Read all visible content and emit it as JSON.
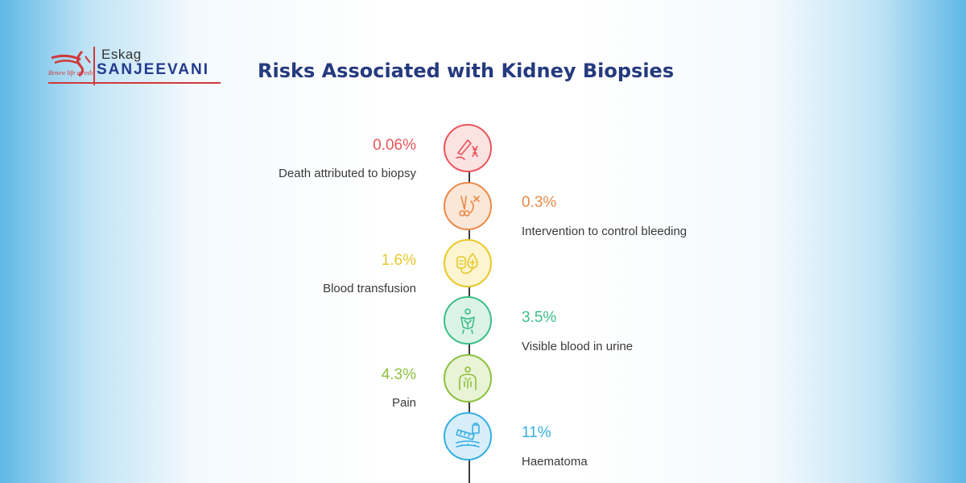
{
  "logo": {
    "top": "Eskag",
    "main": "SANJEEVANI",
    "tagline": "Renew life afresh"
  },
  "title": "Risks Associated with Kidney Biopsies",
  "risks": [
    {
      "percent": "0.06%",
      "label": "Death attributed to biopsy",
      "color": "#e8555a",
      "fill": "#fbe3e2",
      "icon": "scalpel-dna-icon",
      "side": "left"
    },
    {
      "percent": "0.3%",
      "label": "Intervention to control bleeding",
      "color": "#e98a48",
      "fill": "#fbe7d8",
      "icon": "forceps-icon",
      "side": "right"
    },
    {
      "percent": "1.6%",
      "label": "Blood transfusion",
      "color": "#e8c82a",
      "fill": "#fcf5cf",
      "icon": "iv-bag-icon",
      "side": "left"
    },
    {
      "percent": "3.5%",
      "label": "Visible blood in urine",
      "color": "#3cbf87",
      "fill": "#dcf3e8",
      "icon": "person-bladder-icon",
      "side": "right"
    },
    {
      "percent": "4.3%",
      "label": "Pain",
      "color": "#8dc040",
      "fill": "#e9f3d5",
      "icon": "person-pain-icon",
      "side": "left"
    },
    {
      "percent": "11%",
      "label": "Haematoma",
      "color": "#36aee0",
      "fill": "#d7eef9",
      "icon": "injection-skin-icon",
      "side": "right"
    }
  ]
}
